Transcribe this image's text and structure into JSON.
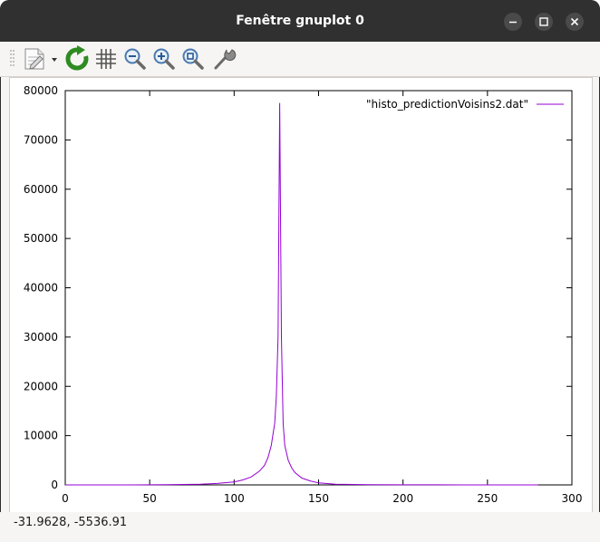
{
  "window": {
    "title": "Fenêtre gnuplot 0"
  },
  "toolbar": {
    "items": [
      {
        "name": "export-menu-icon"
      },
      {
        "name": "replot-icon"
      },
      {
        "name": "grid-icon"
      },
      {
        "name": "zoom-previous-icon"
      },
      {
        "name": "zoom-next-icon"
      },
      {
        "name": "zoom-autoscale-icon"
      },
      {
        "name": "settings-icon"
      }
    ]
  },
  "status": {
    "coords": "-31.9628, -5536.91"
  },
  "chart_data": {
    "type": "line",
    "title": "",
    "xlabel": "",
    "ylabel": "",
    "xlim": [
      0,
      300
    ],
    "ylim": [
      0,
      80000
    ],
    "x_ticks": [
      "0",
      "50",
      "100",
      "150",
      "200",
      "250",
      "300"
    ],
    "y_ticks": [
      "0",
      "10000",
      "20000",
      "30000",
      "40000",
      "50000",
      "60000",
      "70000",
      "80000"
    ],
    "legend_position": "top-right",
    "series": [
      {
        "name": "\"histo_predictionVoisins2.dat\"",
        "color": "#9400d3",
        "x": [
          0,
          20,
          40,
          60,
          80,
          90,
          100,
          105,
          110,
          115,
          118,
          120,
          122,
          124,
          125,
          126,
          127,
          128,
          129,
          130,
          132,
          134,
          136,
          140,
          145,
          150,
          160,
          180,
          200,
          220,
          240,
          260,
          280
        ],
        "y": [
          0,
          0,
          0,
          50,
          150,
          300,
          600,
          1000,
          1600,
          2800,
          4000,
          5500,
          8000,
          12500,
          18000,
          30000,
          77500,
          30000,
          12500,
          8000,
          5000,
          3500,
          2500,
          1400,
          800,
          400,
          150,
          50,
          20,
          10,
          5,
          0,
          0
        ]
      }
    ]
  }
}
